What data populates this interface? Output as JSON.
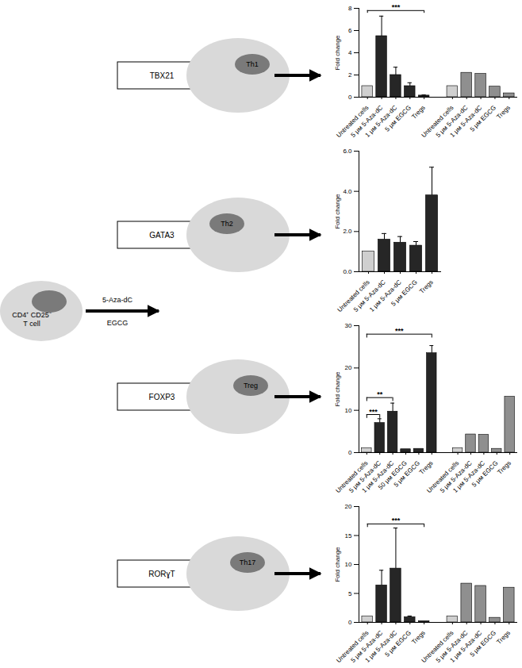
{
  "diagram": {
    "source_cell": {
      "label_lines": [
        "CD4⁺ CD25⁻",
        "T cell"
      ]
    },
    "treatments": [
      "5-Aza-dC",
      "EGCG"
    ],
    "branches": [
      {
        "gene": "TBX21",
        "cell": "Th1"
      },
      {
        "gene": "GATA3",
        "cell": "Th2"
      },
      {
        "gene": "FOXP3",
        "cell": "Treg"
      },
      {
        "gene": "RORɣT",
        "cell": "Th17"
      }
    ]
  },
  "chart_data": [
    {
      "type": "bar",
      "y_label": "Fold change",
      "categories": [
        "Untreated cells",
        "5 μм 5-Aza-dC",
        "1 μм 5-Aza-dC",
        "5 μм EGCG",
        "Tregs",
        null,
        "Untreated cells",
        "5 μм 5-Aza-dC",
        "1 μм 5-Aza-dC",
        "5 μм EGCG",
        "Tregs"
      ],
      "values": [
        1,
        5.5,
        2.0,
        1.0,
        0.15,
        null,
        1,
        2.2,
        2.1,
        0.95,
        0.35
      ],
      "errors": [
        null,
        1.8,
        0.7,
        0.3,
        0.05,
        null,
        null,
        null,
        null,
        null,
        null
      ],
      "colors": [
        "#cfcfcf",
        "#262626",
        "#262626",
        "#262626",
        "#262626",
        null,
        "#cfcfcf",
        "#8f8f8f",
        "#8f8f8f",
        "#8f8f8f",
        "#8f8f8f"
      ],
      "ylim": [
        0,
        8
      ],
      "yticks": [
        0,
        2,
        4,
        6,
        8
      ],
      "annotations": [
        {
          "from": 0,
          "to": 4,
          "y": 7.8,
          "label": "***"
        }
      ]
    },
    {
      "type": "bar",
      "y_label": "Fold change",
      "categories": [
        "Untreated cells",
        "5 μм 5-Aza-dC",
        "1 μм 5-Aza-dC",
        "5 μм EGCG",
        "Tregs"
      ],
      "values": [
        1,
        1.6,
        1.45,
        1.3,
        3.8
      ],
      "errors": [
        null,
        0.3,
        0.3,
        0.2,
        1.4
      ],
      "colors": [
        "#cfcfcf",
        "#262626",
        "#262626",
        "#262626",
        "#262626"
      ],
      "ylim": [
        0,
        6
      ],
      "yticks": [
        0,
        2,
        4,
        6
      ],
      "annotations": []
    },
    {
      "type": "bar",
      "y_label": "Fold change",
      "categories": [
        "Untreated cells",
        "5 μм 5-Aza-dC",
        "1 μм 5-Aza-dC",
        "50 μм EGCG",
        "5 μм EGCG",
        "Tregs",
        null,
        "Untreated cells",
        "5 μм 5-Aza-dC",
        "1 μм 5-Aza-dC",
        "5 μм EGCG",
        "Tregs"
      ],
      "values": [
        1,
        7.0,
        9.7,
        0.8,
        0.9,
        23.5,
        null,
        1,
        4.3,
        4.2,
        0.9,
        13.2
      ],
      "errors": [
        null,
        1.0,
        2.0,
        null,
        null,
        1.8,
        null,
        null,
        null,
        null,
        null,
        null
      ],
      "colors": [
        "#cfcfcf",
        "#262626",
        "#262626",
        "#262626",
        "#262626",
        "#262626",
        null,
        "#cfcfcf",
        "#8f8f8f",
        "#8f8f8f",
        "#8f8f8f",
        "#8f8f8f"
      ],
      "ylim": [
        0,
        30
      ],
      "yticks": [
        0,
        10,
        20,
        30
      ],
      "annotations": [
        {
          "from": 0,
          "to": 5,
          "y": 28,
          "label": "***"
        },
        {
          "from": 0,
          "to": 2,
          "y": 13,
          "label": "**"
        },
        {
          "from": 0,
          "to": 1,
          "y": 9,
          "label": "***"
        }
      ]
    },
    {
      "type": "bar",
      "y_label": "Fold change",
      "categories": [
        "Untreated cells",
        "5 μм 5-Aza-dC",
        "1 μм 5-Aza-dC",
        "5 μм EGCG",
        "Tregs",
        null,
        "Untreated cells",
        "5 μм 5-Aza-dC",
        "1 μм 5-Aza-dC",
        "5 μм EGCG",
        "Tregs"
      ],
      "values": [
        1,
        6.4,
        9.3,
        0.9,
        0.2,
        null,
        1,
        6.7,
        6.3,
        0.8,
        6.0
      ],
      "errors": [
        null,
        2.6,
        7.0,
        0.2,
        null,
        null,
        null,
        null,
        null,
        null,
        null
      ],
      "colors": [
        "#cfcfcf",
        "#262626",
        "#262626",
        "#262626",
        "#262626",
        null,
        "#cfcfcf",
        "#8f8f8f",
        "#8f8f8f",
        "#8f8f8f",
        "#8f8f8f"
      ],
      "ylim": [
        0,
        20
      ],
      "yticks": [
        0,
        5,
        10,
        15,
        20
      ],
      "annotations": [
        {
          "from": 0,
          "to": 4,
          "y": 17,
          "label": "***"
        }
      ]
    }
  ]
}
